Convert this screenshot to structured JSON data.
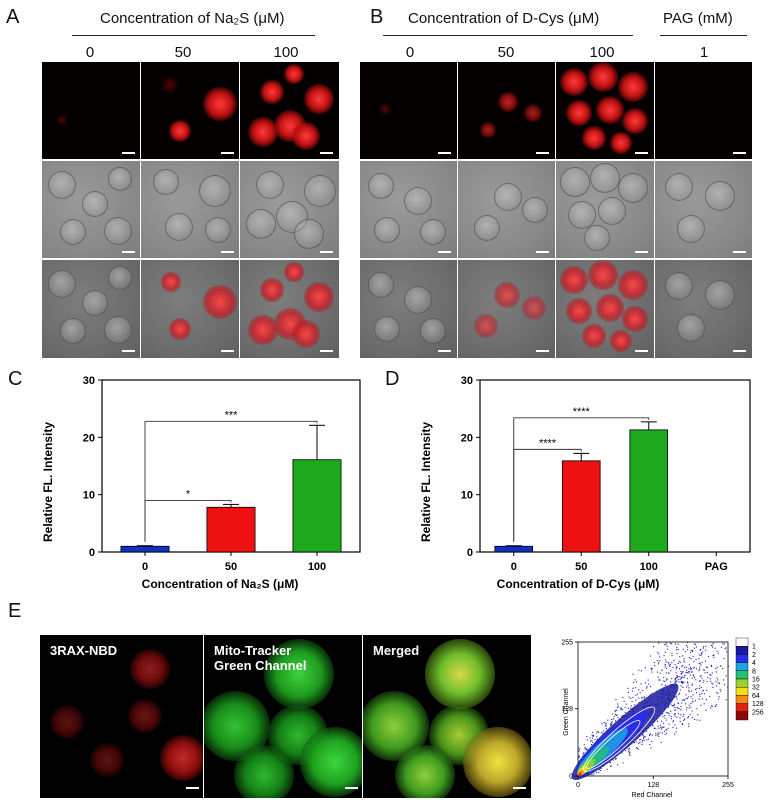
{
  "panels": {
    "A": {
      "label": "A",
      "header": "Concentration of Na₂S (μM)",
      "columns": [
        "0",
        "50",
        "100"
      ]
    },
    "B": {
      "label": "B",
      "header": "Concentration of D-Cys (μM)",
      "header2": "PAG (mM)",
      "columns": [
        "0",
        "50",
        "100",
        "1"
      ]
    },
    "C": {
      "label": "C"
    },
    "D": {
      "label": "D"
    },
    "E": {
      "label": "E",
      "tile_labels": [
        "3RAX-NBD",
        "Mito-Tracker\nGreen Channel",
        "Merged"
      ]
    }
  },
  "colors": {
    "blue": "#1030c8",
    "red": "#ee1111",
    "green": "#1ea81e"
  },
  "chart_data": [
    {
      "type": "bar",
      "panel": "C",
      "categories": [
        "0",
        "50",
        "100"
      ],
      "values": [
        1.0,
        7.8,
        16.1
      ],
      "errors": [
        0.1,
        0.5,
        6.0
      ],
      "colors": [
        "#1030c8",
        "#ee1111",
        "#1ea81e"
      ],
      "xlabel": "Concentration of Na₂S (μM)",
      "ylabel": "Relative FL. Intensity",
      "ylim": [
        0,
        30
      ],
      "yticks": [
        0,
        10,
        20,
        30
      ],
      "significance": [
        {
          "from": "0",
          "to": "50",
          "label": "*"
        },
        {
          "from": "0",
          "to": "100",
          "label": "***"
        }
      ]
    },
    {
      "type": "bar",
      "panel": "D",
      "categories": [
        "0",
        "50",
        "100",
        "PAG"
      ],
      "values": [
        1.0,
        15.9,
        21.3,
        0
      ],
      "errors": [
        0.1,
        1.3,
        1.4,
        0
      ],
      "colors": [
        "#1030c8",
        "#ee1111",
        "#1ea81e",
        "#000000"
      ],
      "xlabel": "Concentration of D-Cys (μM)",
      "ylabel": "Relative FL. Intensity",
      "ylim": [
        0,
        30
      ],
      "yticks": [
        0,
        10,
        20,
        30
      ],
      "significance": [
        {
          "from": "0",
          "to": "50",
          "label": "****"
        },
        {
          "from": "0",
          "to": "100",
          "label": "****"
        }
      ]
    },
    {
      "type": "scatter",
      "panel": "E",
      "xlabel": "Red Channel",
      "ylabel": "Green Channel",
      "xlim": [
        0,
        255
      ],
      "ylim": [
        0,
        255
      ],
      "xticks": [
        0,
        128,
        255
      ],
      "yticks": [
        0,
        128,
        255
      ],
      "legend": {
        "entries": [
          "1",
          "2",
          "4",
          "8",
          "16",
          "32",
          "64",
          "128",
          "256"
        ],
        "colors": [
          "#ffffff",
          "#1a1aa0",
          "#2a2af0",
          "#1fa5e0",
          "#22c07a",
          "#9ad12a",
          "#f4e012",
          "#f58a12",
          "#e02010",
          "#8a0a0a"
        ],
        "placement": "right"
      }
    }
  ]
}
